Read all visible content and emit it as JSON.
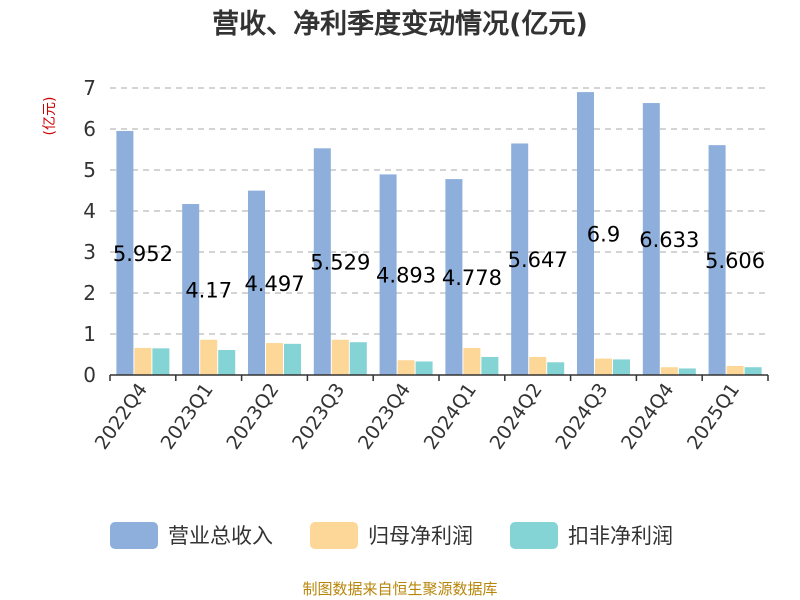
{
  "chart_data": {
    "type": "bar",
    "title": "营收、净利季度变动情况(亿元)",
    "ylabel": "(亿元)",
    "ylim": [
      0,
      7
    ],
    "yticks": [
      0,
      1,
      2,
      3,
      4,
      5,
      6,
      7
    ],
    "grid": "horizontal dashed",
    "legend_position": "bottom",
    "categories": [
      "2022Q4",
      "2023Q1",
      "2023Q2",
      "2023Q3",
      "2023Q4",
      "2024Q1",
      "2024Q2",
      "2024Q3",
      "2024Q4",
      "2025Q1"
    ],
    "series": [
      {
        "name": "营业总收入",
        "color": "#8eaedb",
        "values": [
          5.952,
          4.17,
          4.497,
          5.529,
          4.893,
          4.778,
          5.647,
          6.9,
          6.633,
          5.606
        ],
        "data_labels": [
          "5.952",
          "4.17",
          "4.497",
          "5.529",
          "4.893",
          "4.778",
          "5.647",
          "6.9",
          "6.633",
          "5.606"
        ]
      },
      {
        "name": "归母净利润",
        "color": "#fdd797",
        "values": [
          0.66,
          0.86,
          0.78,
          0.86,
          0.36,
          0.66,
          0.44,
          0.4,
          0.19,
          0.22
        ]
      },
      {
        "name": "扣非净利润",
        "color": "#84d4d6",
        "values": [
          0.65,
          0.61,
          0.76,
          0.8,
          0.33,
          0.44,
          0.31,
          0.38,
          0.16,
          0.19
        ]
      }
    ]
  },
  "source": "制图数据来自恒生聚源数据库"
}
